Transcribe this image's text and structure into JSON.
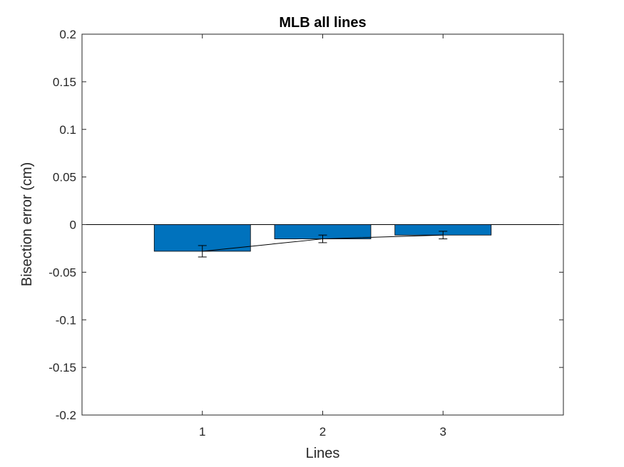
{
  "chart_data": {
    "type": "bar",
    "title": "MLB all lines",
    "xlabel": "Lines",
    "ylabel": "Bisection error (cm)",
    "categories": [
      "1",
      "2",
      "3"
    ],
    "values": [
      -0.028,
      -0.015,
      -0.011
    ],
    "errors": [
      0.006,
      0.004,
      0.004
    ],
    "xlim": [
      0,
      4
    ],
    "ylim": [
      -0.2,
      0.2
    ],
    "yticks": [
      0.2,
      0.15,
      0.1,
      0.05,
      0,
      -0.05,
      -0.1,
      -0.15,
      -0.2
    ],
    "ytick_labels": [
      "0.2",
      "0.15",
      "0.1",
      "0.05",
      "0",
      "-0.05",
      "-0.1",
      "-0.15",
      "-0.2"
    ],
    "grid": false,
    "connect_means_with_line": true,
    "bar_color": "#0072BD"
  }
}
